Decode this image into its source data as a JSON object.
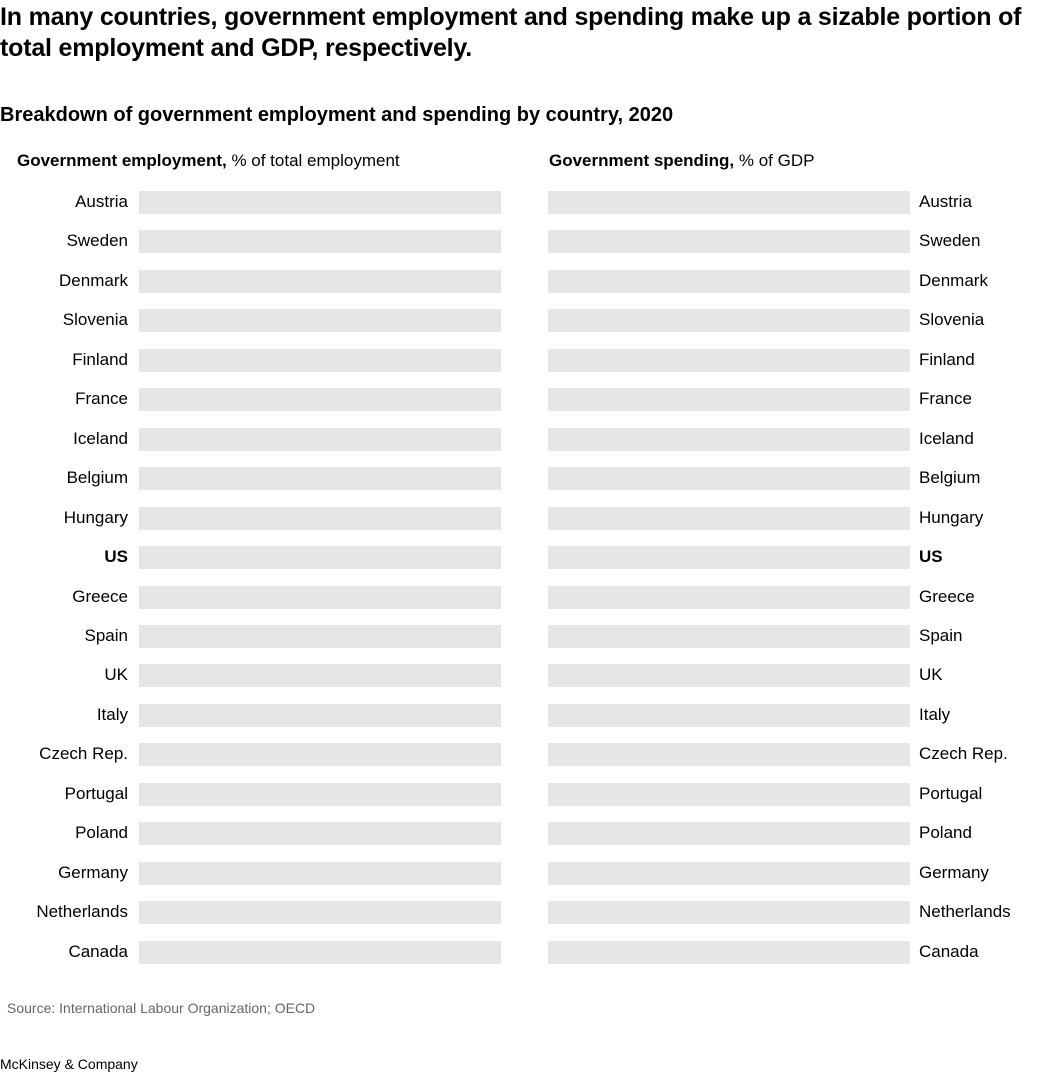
{
  "chart_data": {
    "type": "bar",
    "title": "In many countries, government employment and spending make up a sizable portion of total employment and GDP, respectively.",
    "subtitle": "Breakdown of government employment and spending by country, 2020",
    "categories": [
      "Austria",
      "Sweden",
      "Denmark",
      "Slovenia",
      "Finland",
      "France",
      "Iceland",
      "Belgium",
      "Hungary",
      "US",
      "Greece",
      "Spain",
      "UK",
      "Italy",
      "Czech Rep.",
      "Portugal",
      "Poland",
      "Germany",
      "Netherlands",
      "Canada"
    ],
    "highlighted_category": "US",
    "panels": [
      {
        "label_bold": "Government employment,",
        "label_rest": " % of total employment",
        "orientation": "horizontal",
        "labels_side": "left"
      },
      {
        "label_bold": "Government spending,",
        "label_rest": " % of GDP",
        "orientation": "horizontal",
        "labels_side": "right"
      }
    ],
    "track_color": "#e6e6e6",
    "values_shown": false
  },
  "source": "Source: International Labour Organization; OECD",
  "brand": "McKinsey & Company"
}
